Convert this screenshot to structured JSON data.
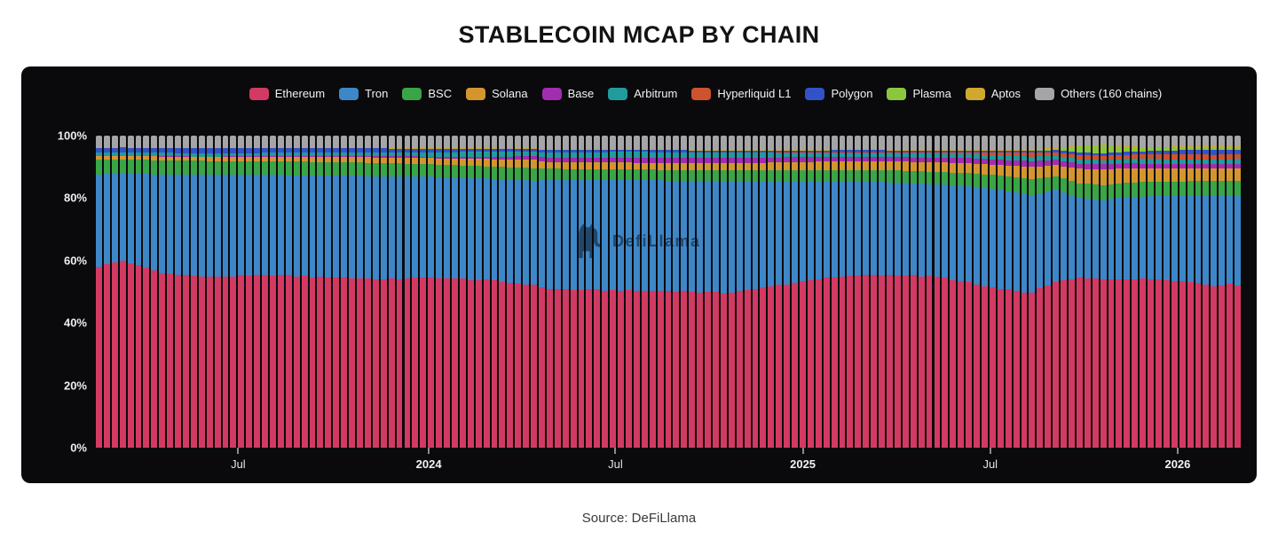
{
  "page": {
    "title": "STABLECOIN MCAP BY CHAIN",
    "source_caption": "Source: DeFiLlama",
    "watermark_text": "DefiLlama"
  },
  "colors": {
    "page_background": "#ffffff",
    "panel_background": "#0a0a0c",
    "axis_text": "#ededed",
    "title_text": "#131313",
    "source_text": "#3a3a3a"
  },
  "chart_data": {
    "type": "bar",
    "variant": "stacked-100-percent-column",
    "title": "STABLECOIN MCAP BY CHAIN",
    "xlabel": "",
    "ylabel": "",
    "unit": "%",
    "ylim": [
      0,
      100
    ],
    "grid": false,
    "legend_position": "top",
    "y_ticks": [
      "100%",
      "80%",
      "60%",
      "40%",
      "20%",
      "0%"
    ],
    "x_axis": {
      "tick_labels": [
        {
          "label": "Jul",
          "bold": false,
          "bar_index": 17.5
        },
        {
          "label": "2024",
          "bold": true,
          "bar_index": 41.6
        },
        {
          "label": "Jul",
          "bold": false,
          "bar_index": 65.2
        },
        {
          "label": "2025",
          "bold": true,
          "bar_index": 88.9
        },
        {
          "label": "Jul",
          "bold": false,
          "bar_index": 112.6
        },
        {
          "label": "2026",
          "bold": true,
          "bar_index": 136.3
        }
      ]
    },
    "bar_count": 145,
    "time_span_note": "weekly bars from mid-2023 through early 2026",
    "series": [
      {
        "name": "Ethereum",
        "label": "Ethereum",
        "color": "#d23a63"
      },
      {
        "name": "Tron",
        "label": "Tron",
        "color": "#3d87c8"
      },
      {
        "name": "BSC",
        "label": "BSC",
        "color": "#3aa546"
      },
      {
        "name": "Solana",
        "label": "Solana",
        "color": "#d4952f"
      },
      {
        "name": "Base",
        "label": "Base",
        "color": "#a22db0"
      },
      {
        "name": "Arbitrum",
        "label": "Arbitrum",
        "color": "#219b9d"
      },
      {
        "name": "Hyperliquid L1",
        "label": "Hyperliquid L1",
        "color": "#cd5230"
      },
      {
        "name": "Polygon",
        "label": "Polygon",
        "color": "#3352c8"
      },
      {
        "name": "Plasma",
        "label": "Plasma",
        "color": "#8cc63f"
      },
      {
        "name": "Aptos",
        "label": "Aptos",
        "color": "#cfa82e"
      },
      {
        "name": "Others",
        "label": "Others (160 chains)",
        "color": "#a5a5a5"
      }
    ],
    "others_is_remainder": true,
    "keyframe_indices": [
      0,
      3,
      8,
      14,
      22,
      30,
      36,
      42,
      47,
      51,
      55,
      57,
      62,
      66,
      73,
      79,
      83,
      90,
      96,
      101,
      106,
      110,
      114,
      118,
      121,
      124,
      127,
      130,
      134,
      138,
      141,
      144
    ],
    "series_keyframes": {
      "Ethereum": [
        58.0,
        60.0,
        56.0,
        54.8,
        55.3,
        54.5,
        54.0,
        54.6,
        54.0,
        53.2,
        52.2,
        50.8,
        50.6,
        50.5,
        50.2,
        49.6,
        50.8,
        53.8,
        55.3,
        55.4,
        54.8,
        52.8,
        50.8,
        49.6,
        53.2,
        54.3,
        54.0,
        54.2,
        54.0,
        53.2,
        52.0,
        52.3
      ],
      "Tron": [
        29.6,
        28.2,
        31.5,
        32.6,
        32.1,
        32.7,
        33.0,
        32.2,
        32.5,
        32.8,
        33.4,
        35.4,
        35.4,
        35.5,
        35.4,
        35.8,
        34.4,
        31.4,
        30.0,
        29.6,
        29.6,
        31.0,
        31.8,
        31.3,
        29.4,
        25.7,
        25.4,
        26.2,
        26.6,
        27.6,
        28.9,
        28.7
      ],
      "BSC": [
        4.6,
        4.2,
        4.6,
        4.5,
        4.4,
        4.3,
        4.2,
        4.0,
        3.9,
        4.0,
        4.0,
        3.2,
        3.2,
        3.2,
        3.4,
        3.4,
        3.6,
        3.7,
        3.7,
        3.8,
        4.0,
        4.2,
        4.6,
        5.1,
        4.4,
        4.8,
        4.8,
        4.6,
        4.6,
        4.6,
        4.5,
        4.5
      ],
      "Solana": [
        1.2,
        1.1,
        1.2,
        1.3,
        1.5,
        1.7,
        1.8,
        2.0,
        2.2,
        2.4,
        2.6,
        2.2,
        2.3,
        2.2,
        2.2,
        2.4,
        2.5,
        2.7,
        2.8,
        2.9,
        3.0,
        3.2,
        3.4,
        4.0,
        3.6,
        4.6,
        5.0,
        4.6,
        4.3,
        4.0,
        4.0,
        4.0
      ],
      "Base": [
        0,
        0,
        0.1,
        0.1,
        0.2,
        0.3,
        0.4,
        0.5,
        0.7,
        0.9,
        1.2,
        1.4,
        1.5,
        1.6,
        1.7,
        1.7,
        1.7,
        1.5,
        1.4,
        1.4,
        1.5,
        1.6,
        1.7,
        1.8,
        1.6,
        1.6,
        1.6,
        1.5,
        1.5,
        1.5,
        1.5,
        1.5
      ],
      "Arbitrum": [
        1.1,
        1.1,
        1.1,
        1.1,
        1.0,
        1.1,
        1.2,
        1.4,
        1.5,
        1.5,
        1.5,
        1.6,
        1.7,
        1.8,
        1.8,
        1.7,
        1.5,
        1.3,
        1.2,
        1.2,
        1.3,
        1.3,
        1.4,
        1.5,
        1.4,
        1.4,
        1.4,
        1.4,
        1.5,
        1.5,
        1.5,
        1.5
      ],
      "Hyperliquid L1": [
        0,
        0,
        0,
        0,
        0,
        0,
        0,
        0,
        0,
        0,
        0,
        0,
        0,
        0,
        0,
        0,
        0.1,
        0.2,
        0.3,
        0.4,
        0.5,
        0.6,
        0.9,
        1.2,
        1.1,
        1.4,
        1.4,
        1.4,
        1.5,
        1.6,
        1.5,
        1.5
      ],
      "Polygon": [
        1.6,
        1.6,
        1.6,
        1.6,
        1.5,
        1.4,
        1.3,
        1.1,
        1.0,
        0.9,
        0.8,
        0.8,
        0.8,
        0.7,
        0.7,
        0.6,
        0.7,
        0.7,
        0.7,
        0.6,
        0.5,
        0.5,
        0.6,
        0.7,
        0.7,
        0.8,
        0.8,
        1.0,
        1.2,
        1.4,
        1.5,
        1.5
      ],
      "Plasma": [
        0,
        0,
        0,
        0,
        0,
        0,
        0,
        0,
        0,
        0,
        0,
        0,
        0,
        0,
        0,
        0,
        0,
        0,
        0,
        0,
        0,
        0,
        0,
        0,
        0.2,
        2.0,
        2.4,
        1.3,
        0.8,
        0.8,
        0.9,
        0.9
      ],
      "Aptos": [
        0.2,
        0.2,
        0.2,
        0.2,
        0.2,
        0.2,
        0.2,
        0.2,
        0.2,
        0.2,
        0.2,
        0.2,
        0.2,
        0.2,
        0.2,
        0.2,
        0.2,
        0.2,
        0.2,
        0.2,
        0.2,
        0.2,
        0.2,
        0.6,
        0.4,
        0.3,
        0.3,
        0.3,
        0.4,
        0.4,
        0.3,
        0.3
      ]
    }
  }
}
